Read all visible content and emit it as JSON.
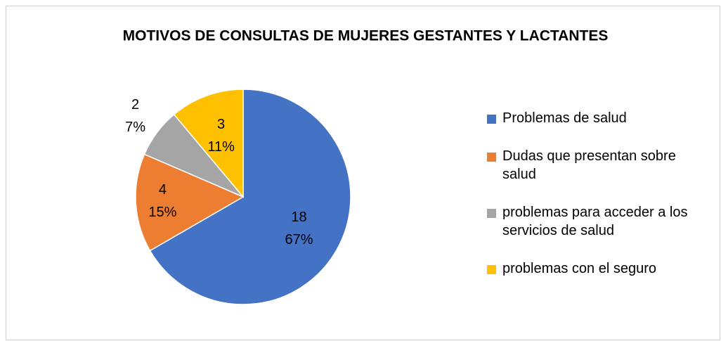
{
  "chart_data": {
    "type": "pie",
    "title": "MOTIVOS DE CONSULTAS DE MUJERES GESTANTES Y LACTANTES",
    "categories": [
      "Problemas de salud",
      "Dudas que presentan sobre salud",
      "problemas para acceder a los servicios de salud",
      "problemas con el seguro"
    ],
    "values": [
      18,
      4,
      2,
      3
    ],
    "percent_labels": [
      "67%",
      "15%",
      "7%",
      "11%"
    ],
    "colors": [
      "#4472c4",
      "#ed7d31",
      "#a5a5a5",
      "#ffc000"
    ],
    "legend": "right"
  }
}
